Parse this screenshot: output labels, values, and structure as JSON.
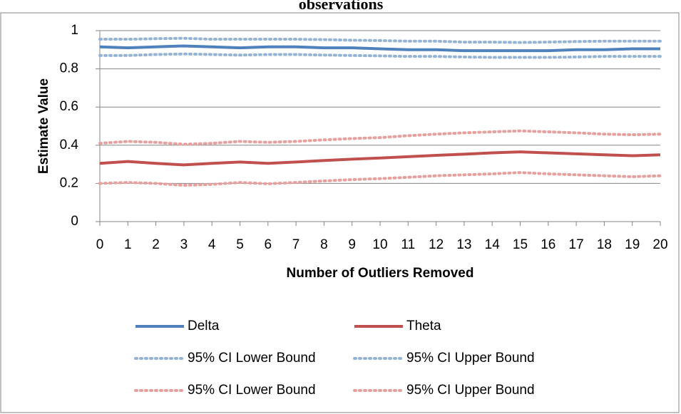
{
  "chart_data": {
    "type": "line",
    "title": "observations",
    "x_label": "Number of Outliers Removed",
    "y_label": "Estimate Value",
    "x": [
      0,
      1,
      2,
      3,
      4,
      5,
      6,
      7,
      8,
      9,
      10,
      11,
      12,
      13,
      14,
      15,
      16,
      17,
      18,
      19,
      20
    ],
    "xlim": [
      0,
      20
    ],
    "xticks": [
      0,
      1,
      2,
      3,
      4,
      5,
      6,
      7,
      8,
      9,
      10,
      11,
      12,
      13,
      14,
      15,
      16,
      17,
      18,
      19,
      20
    ],
    "ylim": [
      0,
      1
    ],
    "yticks": [
      0,
      0.2,
      0.4,
      0.6,
      0.8,
      1
    ],
    "grid": true,
    "legend": "bottom",
    "series": [
      {
        "name": "Delta",
        "color": "#4f81bd",
        "style": "solid",
        "values": [
          0.915,
          0.91,
          0.915,
          0.92,
          0.915,
          0.91,
          0.915,
          0.915,
          0.91,
          0.91,
          0.905,
          0.9,
          0.9,
          0.895,
          0.895,
          0.895,
          0.895,
          0.9,
          0.9,
          0.905,
          0.905
        ]
      },
      {
        "name": "Theta",
        "color": "#c0504d",
        "style": "solid",
        "values": [
          0.305,
          0.315,
          0.305,
          0.297,
          0.305,
          0.312,
          0.305,
          0.312,
          0.32,
          0.327,
          0.333,
          0.34,
          0.347,
          0.353,
          0.36,
          0.365,
          0.36,
          0.355,
          0.35,
          0.345,
          0.35
        ]
      },
      {
        "name": "95% CI Lower Bound",
        "color": "#95b3d7",
        "style": "dotted",
        "values": [
          0.87,
          0.87,
          0.875,
          0.878,
          0.875,
          0.872,
          0.875,
          0.875,
          0.872,
          0.87,
          0.868,
          0.865,
          0.865,
          0.862,
          0.86,
          0.86,
          0.86,
          0.862,
          0.865,
          0.865,
          0.865
        ]
      },
      {
        "name": "95% CI Upper Bound",
        "color": "#95b3d7",
        "style": "dotted",
        "values": [
          0.955,
          0.955,
          0.958,
          0.96,
          0.955,
          0.955,
          0.955,
          0.955,
          0.953,
          0.95,
          0.948,
          0.945,
          0.945,
          0.94,
          0.94,
          0.938,
          0.94,
          0.943,
          0.945,
          0.945,
          0.945
        ]
      },
      {
        "name": "95% CI Lower Bound",
        "color": "#e6a09e",
        "style": "dotted",
        "values": [
          0.2,
          0.205,
          0.2,
          0.19,
          0.195,
          0.205,
          0.198,
          0.205,
          0.213,
          0.22,
          0.225,
          0.232,
          0.24,
          0.245,
          0.25,
          0.257,
          0.25,
          0.245,
          0.24,
          0.235,
          0.24
        ]
      },
      {
        "name": "95% CI Upper Bound",
        "color": "#e6a09e",
        "style": "dotted",
        "values": [
          0.41,
          0.42,
          0.415,
          0.405,
          0.41,
          0.42,
          0.415,
          0.42,
          0.428,
          0.435,
          0.44,
          0.45,
          0.458,
          0.465,
          0.47,
          0.475,
          0.47,
          0.465,
          0.458,
          0.455,
          0.458
        ]
      }
    ]
  }
}
